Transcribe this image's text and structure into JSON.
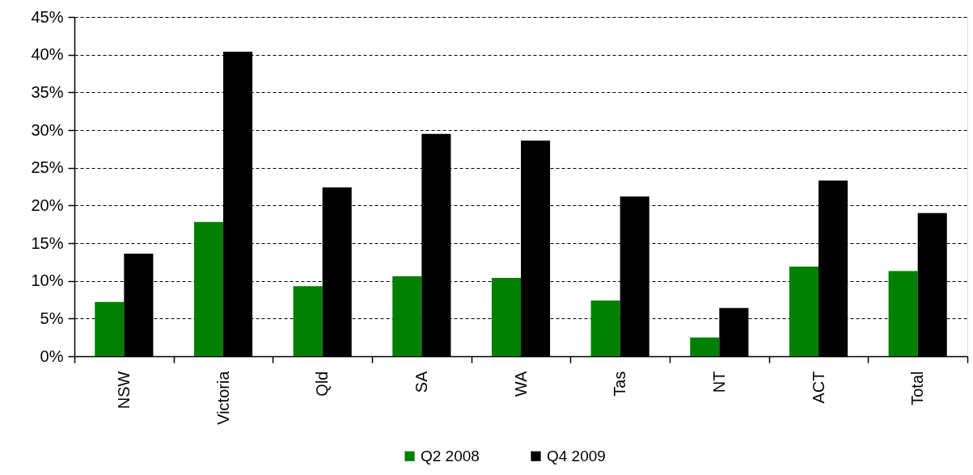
{
  "chart_data": {
    "type": "bar",
    "categories": [
      "NSW",
      "Victoria",
      "Qld",
      "SA",
      "WA",
      "Tas",
      "NT",
      "ACT",
      "Total"
    ],
    "series": [
      {
        "name": "Q2 2008",
        "color": "#008000",
        "values": [
          7.2,
          17.8,
          9.3,
          10.6,
          10.4,
          7.4,
          2.5,
          11.9,
          11.3
        ]
      },
      {
        "name": "Q4 2009",
        "color": "#000000",
        "values": [
          13.6,
          40.4,
          22.4,
          29.5,
          28.6,
          21.2,
          6.4,
          23.3,
          19.0
        ]
      }
    ],
    "ylim": [
      0,
      45
    ],
    "yticks": [
      {
        "value": 0,
        "label": "0%"
      },
      {
        "value": 5,
        "label": "5%"
      },
      {
        "value": 10,
        "label": "10%"
      },
      {
        "value": 15,
        "label": "15%"
      },
      {
        "value": 20,
        "label": "20%"
      },
      {
        "value": 25,
        "label": "25%"
      },
      {
        "value": 30,
        "label": "30%"
      },
      {
        "value": 35,
        "label": "35%"
      },
      {
        "value": 40,
        "label": "40%"
      },
      {
        "value": 45,
        "label": "45%"
      }
    ],
    "grid": "y",
    "legend": "bottom"
  }
}
